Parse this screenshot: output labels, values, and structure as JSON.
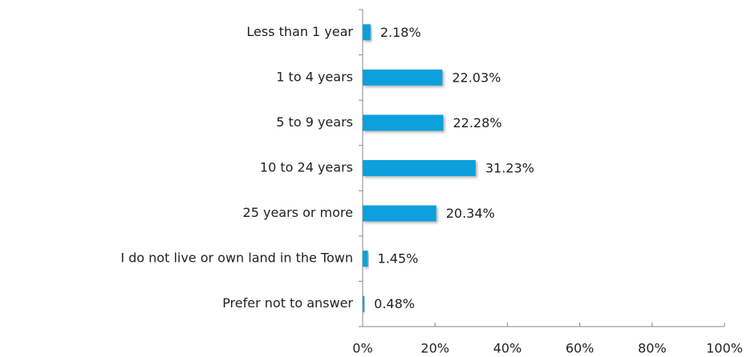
{
  "chart_data": {
    "type": "bar",
    "orientation": "horizontal",
    "categories": [
      "Less than 1 year",
      "1 to 4 years",
      "5 to 9 years",
      "10 to 24 years",
      "25 years or more",
      "I do not live or own land in the Town",
      "Prefer not to answer"
    ],
    "values": [
      2.18,
      22.03,
      22.28,
      31.23,
      20.34,
      1.45,
      0.48
    ],
    "value_labels": [
      "2.18%",
      "22.03%",
      "22.28%",
      "31.23%",
      "20.34%",
      "1.45%",
      "0.48%"
    ],
    "color": "#0fa0dc",
    "xlim": [
      0,
      100
    ],
    "xticks": [
      {
        "value": 0,
        "label": "0%"
      },
      {
        "value": 20,
        "label": "20%"
      },
      {
        "value": 40,
        "label": "40%"
      },
      {
        "value": 60,
        "label": "60%"
      },
      {
        "value": 80,
        "label": "80%"
      },
      {
        "value": 100,
        "label": "100%"
      }
    ],
    "grid": false
  }
}
